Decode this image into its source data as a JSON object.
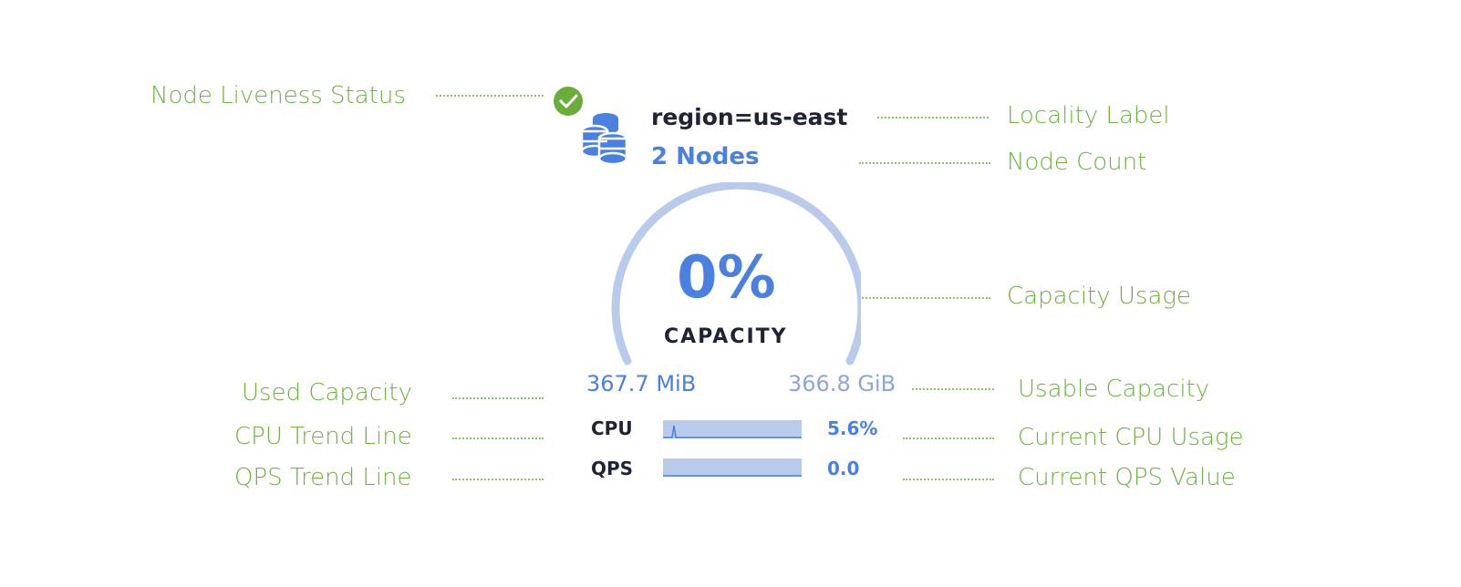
{
  "annotations": {
    "liveness": "Node Liveness Status",
    "locality": "Locality Label",
    "node_count": "Node Count",
    "capacity_usage": "Capacity Usage",
    "used_capacity": "Used Capacity",
    "usable_capacity": "Usable Capacity",
    "cpu_trend": "CPU Trend Line",
    "current_cpu": "Current CPU Usage",
    "qps_trend": "QPS Trend Line",
    "current_qps": "Current QPS Value"
  },
  "node": {
    "status": "live",
    "locality": "region=us-east",
    "node_count": "2 Nodes",
    "capacity_percent": "0%",
    "capacity_label": "CAPACITY",
    "used": "367.7 MiB",
    "usable": "366.8 GiB",
    "cpu_label": "CPU",
    "cpu_value": "5.6%",
    "qps_label": "QPS",
    "qps_value": "0.0"
  },
  "colors": {
    "annotation": "#6cb33e",
    "accent": "#4a80e0",
    "gauge_track": "#b9cbea",
    "status_ok": "#6aae3a"
  }
}
